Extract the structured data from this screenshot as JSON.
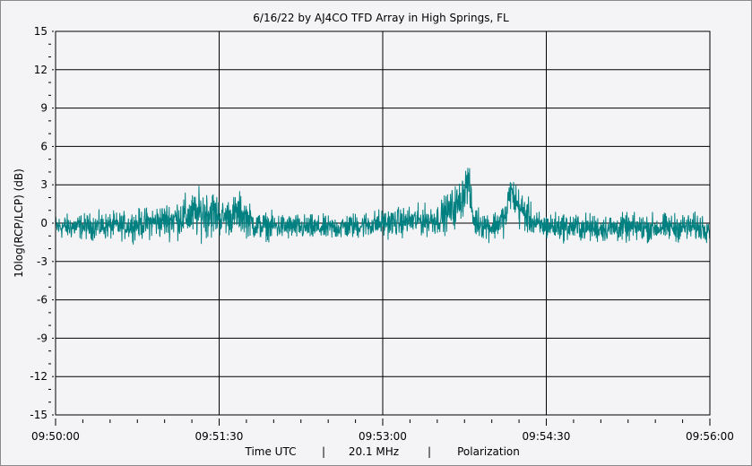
{
  "chart_data": {
    "type": "line",
    "title": "6/16/22  by  AJ4CO TFD Array  in  High Springs, FL",
    "ylabel": "10log(RCP/LCP) (dB)",
    "xlabel_parts": [
      "Time UTC",
      "|",
      "20.1 MHz",
      "|",
      "Polarization"
    ],
    "ylim": [
      -15,
      15
    ],
    "yticks": [
      15,
      12,
      9,
      6,
      3,
      0,
      -3,
      -6,
      -9,
      -12,
      -15
    ],
    "xlim": [
      "09:50:00",
      "09:56:00"
    ],
    "xticks": [
      "09:50:00",
      "09:51:30",
      "09:53:00",
      "09:54:30",
      "09:56:00"
    ],
    "x_minor_tick_interval_s": 15,
    "grid": true,
    "series_color": "#008080",
    "series_envelope": {
      "description_of_columns": [
        "time",
        "mean_dB",
        "noise_amplitude_dB"
      ],
      "points": [
        [
          "09:50:00",
          -0.3,
          0.7
        ],
        [
          "09:50:40",
          -0.2,
          0.8
        ],
        [
          "09:51:00",
          0.2,
          1.0
        ],
        [
          "09:51:15",
          0.6,
          1.3
        ],
        [
          "09:51:25",
          0.9,
          1.5
        ],
        [
          "09:51:32",
          0.4,
          1.0
        ],
        [
          "09:51:42",
          0.8,
          1.2
        ],
        [
          "09:51:50",
          -0.2,
          0.8
        ],
        [
          "09:52:30",
          -0.4,
          0.7
        ],
        [
          "09:53:00",
          0.0,
          0.8
        ],
        [
          "09:53:30",
          0.3,
          0.9
        ],
        [
          "09:53:42",
          1.5,
          1.3
        ],
        [
          "09:53:47",
          3.3,
          1.2
        ],
        [
          "09:53:50",
          0.2,
          0.9
        ],
        [
          "09:54:00",
          -0.3,
          0.8
        ],
        [
          "09:54:08",
          0.5,
          1.0
        ],
        [
          "09:54:10",
          2.6,
          1.0
        ],
        [
          "09:54:15",
          1.2,
          1.2
        ],
        [
          "09:54:25",
          -0.2,
          0.8
        ],
        [
          "09:55:00",
          -0.4,
          0.8
        ],
        [
          "09:56:00",
          -0.3,
          0.8
        ]
      ]
    }
  }
}
